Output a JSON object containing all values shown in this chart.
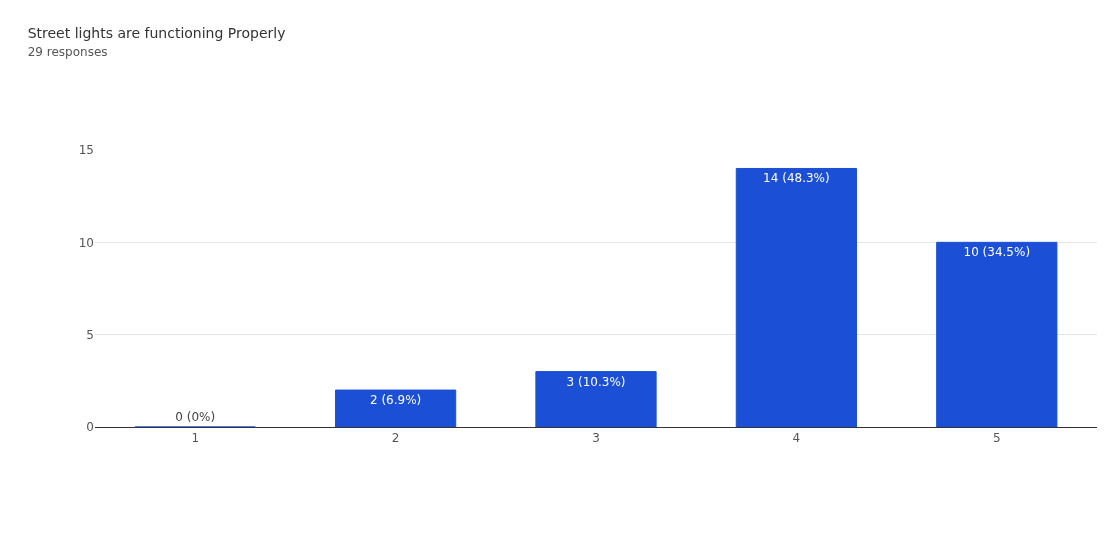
{
  "chart_data": {
    "type": "bar",
    "title": "Street lights are functioning Properly",
    "subtitle": "29 responses",
    "categories": [
      "1",
      "2",
      "3",
      "4",
      "5"
    ],
    "values": [
      0,
      2,
      3,
      14,
      10
    ],
    "value_labels": [
      "0 (0%)",
      "2 (6.9%)",
      "3 (10.3%)",
      "14 (48.3%)",
      "10 (34.5%)"
    ],
    "color": "#1a4fd6",
    "ylim": [
      0,
      15
    ],
    "yticks": [
      0,
      5,
      10,
      15
    ],
    "grid": "y"
  }
}
